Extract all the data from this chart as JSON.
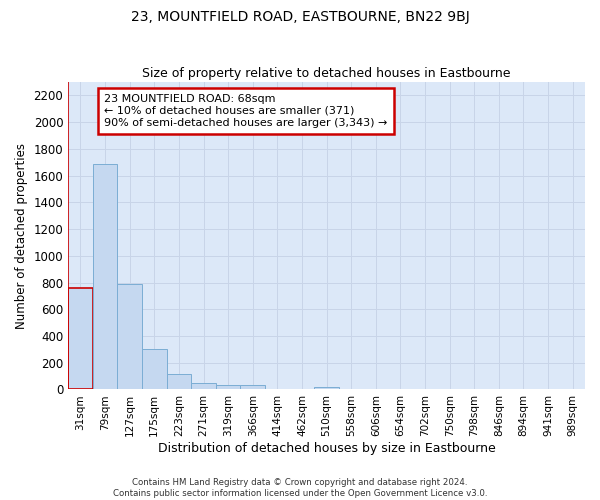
{
  "title": "23, MOUNTFIELD ROAD, EASTBOURNE, BN22 9BJ",
  "subtitle": "Size of property relative to detached houses in Eastbourne",
  "xlabel": "Distribution of detached houses by size in Eastbourne",
  "ylabel": "Number of detached properties",
  "categories": [
    "31sqm",
    "79sqm",
    "127sqm",
    "175sqm",
    "223sqm",
    "271sqm",
    "319sqm",
    "366sqm",
    "414sqm",
    "462sqm",
    "510sqm",
    "558sqm",
    "606sqm",
    "654sqm",
    "702sqm",
    "750sqm",
    "798sqm",
    "846sqm",
    "894sqm",
    "941sqm",
    "989sqm"
  ],
  "values": [
    760,
    1690,
    790,
    300,
    115,
    45,
    30,
    30,
    0,
    0,
    20,
    0,
    0,
    0,
    0,
    0,
    0,
    0,
    0,
    0,
    0
  ],
  "bar_color": "#c5d8f0",
  "bar_edge_color": "#7badd4",
  "highlight_bar_index": 0,
  "highlight_edge_color": "#cc0000",
  "annotation_line1": "23 MOUNTFIELD ROAD: 68sqm",
  "annotation_line2": "← 10% of detached houses are smaller (371)",
  "annotation_line3": "90% of semi-detached houses are larger (3,343) →",
  "annotation_box_color": "#ffffff",
  "annotation_border_color": "#cc0000",
  "ylim": [
    0,
    2300
  ],
  "yticks": [
    0,
    200,
    400,
    600,
    800,
    1000,
    1200,
    1400,
    1600,
    1800,
    2000,
    2200
  ],
  "grid_color": "#c8d4e8",
  "background_color": "#dce8f8",
  "fig_background": "#ffffff",
  "footer_line1": "Contains HM Land Registry data © Crown copyright and database right 2024.",
  "footer_line2": "Contains public sector information licensed under the Open Government Licence v3.0."
}
